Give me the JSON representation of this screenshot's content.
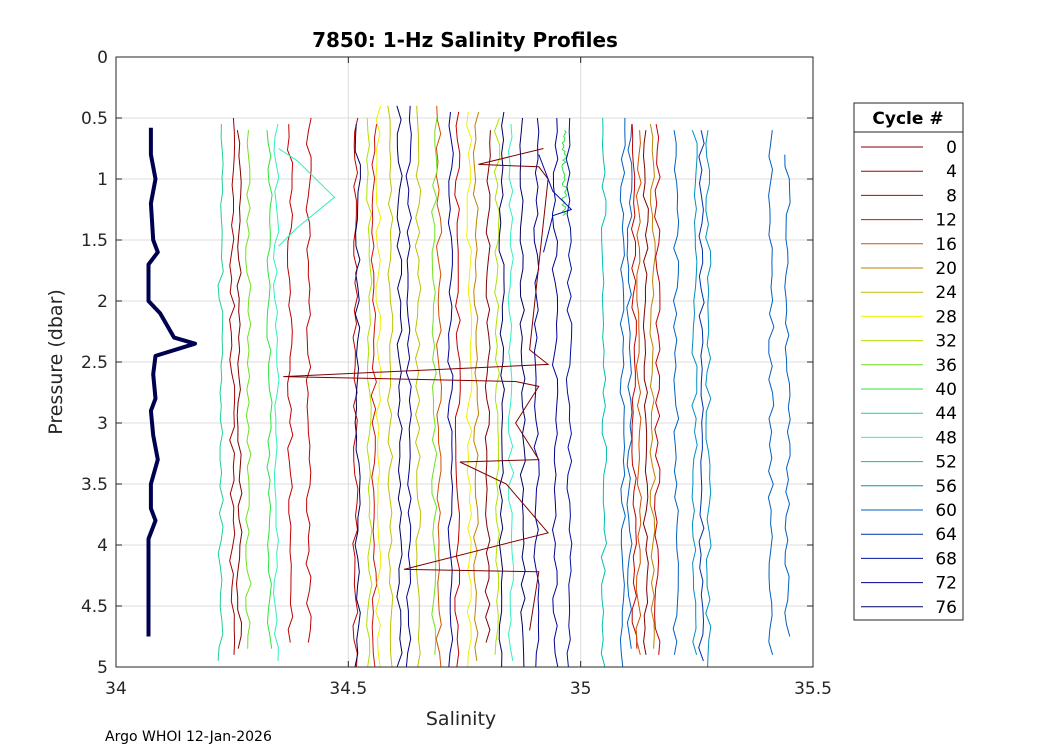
{
  "chart_data": {
    "type": "line",
    "title": "7850: 1-Hz Salinity Profiles",
    "xlabel": "Salinity",
    "ylabel": "Pressure (dbar)",
    "xlim": [
      34,
      35.5
    ],
    "ylim": [
      0,
      5
    ],
    "y_reversed": true,
    "grid": true,
    "x_ticks": [
      "34",
      "34.5",
      "35",
      "35.5"
    ],
    "y_ticks": [
      "0",
      "0.5",
      "1",
      "1.5",
      "2",
      "2.5",
      "3",
      "3.5",
      "4",
      "4.5",
      "5"
    ],
    "legend": {
      "title": "Cycle #",
      "placement": "right-outside",
      "entries": [
        "0",
        "4",
        "8",
        "12",
        "16",
        "20",
        "24",
        "28",
        "32",
        "36",
        "40",
        "44",
        "48",
        "52",
        "56",
        "60",
        "64",
        "68",
        "72",
        "76"
      ],
      "colors": [
        "#800000",
        "#a00000",
        "#c00000",
        "#d01010",
        "#d05000",
        "#c08000",
        "#c0c000",
        "#f0f000",
        "#b0e000",
        "#70e020",
        "#30e040",
        "#20d090",
        "#30f0c0",
        "#00c0b0",
        "#0090c0",
        "#0060c0",
        "#0030b0",
        "#0010a0",
        "#000090",
        "#000060"
      ]
    },
    "profiles": [
      {
        "x": 34.265,
        "color": "#800000",
        "start": 0.6,
        "end": 4.85
      },
      {
        "x": 34.25,
        "color": "#a00000",
        "start": 0.5,
        "end": 4.9
      },
      {
        "x": 34.375,
        "color": "#c00000",
        "start": 0.55,
        "end": 4.8
      },
      {
        "x": 34.415,
        "color": "#c00000",
        "start": 0.5,
        "end": 4.8
      },
      {
        "x": 34.515,
        "color": "#c00000",
        "start": 0.5,
        "end": 5.0
      },
      {
        "x": 34.555,
        "color": "#d01010",
        "start": 0.55,
        "end": 5.0
      },
      {
        "x": 34.695,
        "color": "#d05000",
        "start": 0.4,
        "end": 5.0
      },
      {
        "x": 34.735,
        "color": "#c00000",
        "start": 0.45,
        "end": 5.0
      },
      {
        "x": 34.775,
        "color": "#c08000",
        "start": 0.45,
        "end": 4.95
      },
      {
        "x": 34.565,
        "color": "#f0f000",
        "start": 0.4,
        "end": 5.0
      },
      {
        "x": 34.59,
        "color": "#c0c000",
        "start": 0.4,
        "end": 5.0
      },
      {
        "x": 34.65,
        "color": "#c0c000",
        "start": 0.4,
        "end": 5.0
      },
      {
        "x": 34.76,
        "color": "#f0f000",
        "start": 0.45,
        "end": 5.0
      },
      {
        "x": 34.545,
        "color": "#b0e000",
        "start": 0.5,
        "end": 5.0
      },
      {
        "x": 34.82,
        "color": "#b0e000",
        "start": 0.5,
        "end": 4.9
      },
      {
        "x": 34.285,
        "color": "#70e020",
        "start": 0.6,
        "end": 4.85
      },
      {
        "x": 34.685,
        "color": "#70e020",
        "start": 0.5,
        "end": 4.9
      },
      {
        "x": 34.33,
        "color": "#30e040",
        "start": 0.6,
        "end": 4.85
      },
      {
        "x": 34.965,
        "color": "#30e040",
        "start": 0.6,
        "end": 1.3
      },
      {
        "x": 34.225,
        "color": "#20d090",
        "start": 0.55,
        "end": 4.95
      },
      {
        "x": 34.345,
        "color": "#30f0c0",
        "start": 0.55,
        "end": 4.95
      },
      {
        "x": 34.85,
        "color": "#30f0c0",
        "start": 0.55,
        "end": 4.95
      },
      {
        "x": 35.05,
        "color": "#00c0b0",
        "start": 0.5,
        "end": 5.0
      },
      {
        "x": 35.245,
        "color": "#0090c0",
        "start": 0.6,
        "end": 4.9
      },
      {
        "x": 35.275,
        "color": "#0090c0",
        "start": 0.6,
        "end": 5.0
      },
      {
        "x": 35.09,
        "color": "#0060c0",
        "start": 0.5,
        "end": 5.0
      },
      {
        "x": 35.205,
        "color": "#0060c0",
        "start": 0.6,
        "end": 4.9
      },
      {
        "x": 35.26,
        "color": "#0030b0",
        "start": 0.6,
        "end": 4.95
      },
      {
        "x": 35.41,
        "color": "#0060c0",
        "start": 0.6,
        "end": 4.9
      },
      {
        "x": 35.445,
        "color": "#0060c0",
        "start": 0.8,
        "end": 4.75
      },
      {
        "x": 34.975,
        "color": "#0010a0",
        "start": 0.5,
        "end": 5.0
      },
      {
        "x": 34.905,
        "color": "#000090",
        "start": 0.5,
        "end": 5.0
      },
      {
        "x": 34.63,
        "color": "#000090",
        "start": 0.4,
        "end": 5.0
      },
      {
        "x": 34.61,
        "color": "#000060",
        "start": 0.4,
        "end": 5.0
      },
      {
        "x": 34.83,
        "color": "#000060",
        "start": 0.45,
        "end": 5.0
      },
      {
        "x": 34.875,
        "color": "#000060",
        "start": 0.5,
        "end": 5.0
      },
      {
        "x": 34.945,
        "color": "#000090",
        "start": 0.5,
        "end": 5.0
      },
      {
        "x": 34.72,
        "color": "#000090",
        "start": 0.45,
        "end": 5.0
      },
      {
        "x": 34.52,
        "color": "#000060",
        "start": 0.55,
        "end": 5.0
      },
      {
        "x": 34.8,
        "color": "#800000",
        "start": 0.6,
        "end": 4.8
      },
      {
        "x": 35.14,
        "color": "#800000",
        "start": 0.6,
        "end": 4.9
      },
      {
        "x": 35.115,
        "color": "#c00000",
        "start": 0.55,
        "end": 4.85
      },
      {
        "x": 35.125,
        "color": "#d05000",
        "start": 0.6,
        "end": 4.9
      },
      {
        "x": 35.155,
        "color": "#c08000",
        "start": 0.55,
        "end": 4.85
      },
      {
        "x": 35.165,
        "color": "#c00000",
        "start": 0.55,
        "end": 4.9
      },
      {
        "x": 35.105,
        "color": "#0060c0",
        "start": 0.55,
        "end": 4.85
      }
    ],
    "bold_profile": {
      "color": "#000050",
      "points": [
        [
          34.075,
          0.58
        ],
        [
          34.075,
          0.8
        ],
        [
          34.085,
          1.0
        ],
        [
          34.075,
          1.2
        ],
        [
          34.08,
          1.5
        ],
        [
          34.09,
          1.6
        ],
        [
          34.07,
          1.7
        ],
        [
          34.07,
          2.0
        ],
        [
          34.095,
          2.1
        ],
        [
          34.125,
          2.3
        ],
        [
          34.17,
          2.35
        ],
        [
          34.085,
          2.45
        ],
        [
          34.08,
          2.6
        ],
        [
          34.085,
          2.8
        ],
        [
          34.075,
          2.9
        ],
        [
          34.08,
          3.1
        ],
        [
          34.09,
          3.3
        ],
        [
          34.075,
          3.5
        ],
        [
          34.075,
          3.7
        ],
        [
          34.085,
          3.8
        ],
        [
          34.07,
          3.95
        ],
        [
          34.07,
          4.4
        ],
        [
          34.07,
          4.75
        ]
      ]
    },
    "cross_lines": [
      {
        "color": "#800000",
        "points": [
          [
            34.92,
            0.75
          ],
          [
            34.78,
            0.88
          ],
          [
            34.91,
            0.9
          ],
          [
            34.93,
            1.0
          ],
          [
            34.89,
            2.4
          ],
          [
            34.93,
            2.52
          ],
          [
            34.36,
            2.62
          ],
          [
            34.86,
            2.66
          ],
          [
            34.91,
            2.7
          ],
          [
            34.86,
            3.0
          ],
          [
            34.91,
            3.3
          ],
          [
            34.74,
            3.32
          ],
          [
            34.84,
            3.5
          ],
          [
            34.93,
            3.9
          ],
          [
            34.62,
            4.2
          ],
          [
            34.91,
            4.22
          ],
          [
            34.89,
            4.7
          ]
        ]
      },
      {
        "color": "#0010a0",
        "points": [
          [
            34.91,
            0.8
          ],
          [
            34.94,
            1.1
          ],
          [
            34.98,
            1.25
          ],
          [
            34.94,
            1.3
          ],
          [
            34.92,
            1.6
          ]
        ]
      },
      {
        "color": "#30f0c0",
        "points": [
          [
            34.35,
            0.75
          ],
          [
            34.39,
            0.85
          ],
          [
            34.43,
            1.0
          ],
          [
            34.47,
            1.15
          ],
          [
            34.39,
            1.4
          ],
          [
            34.35,
            1.55
          ]
        ]
      }
    ]
  },
  "footer": "Argo WHOI 12-Jan-2026"
}
